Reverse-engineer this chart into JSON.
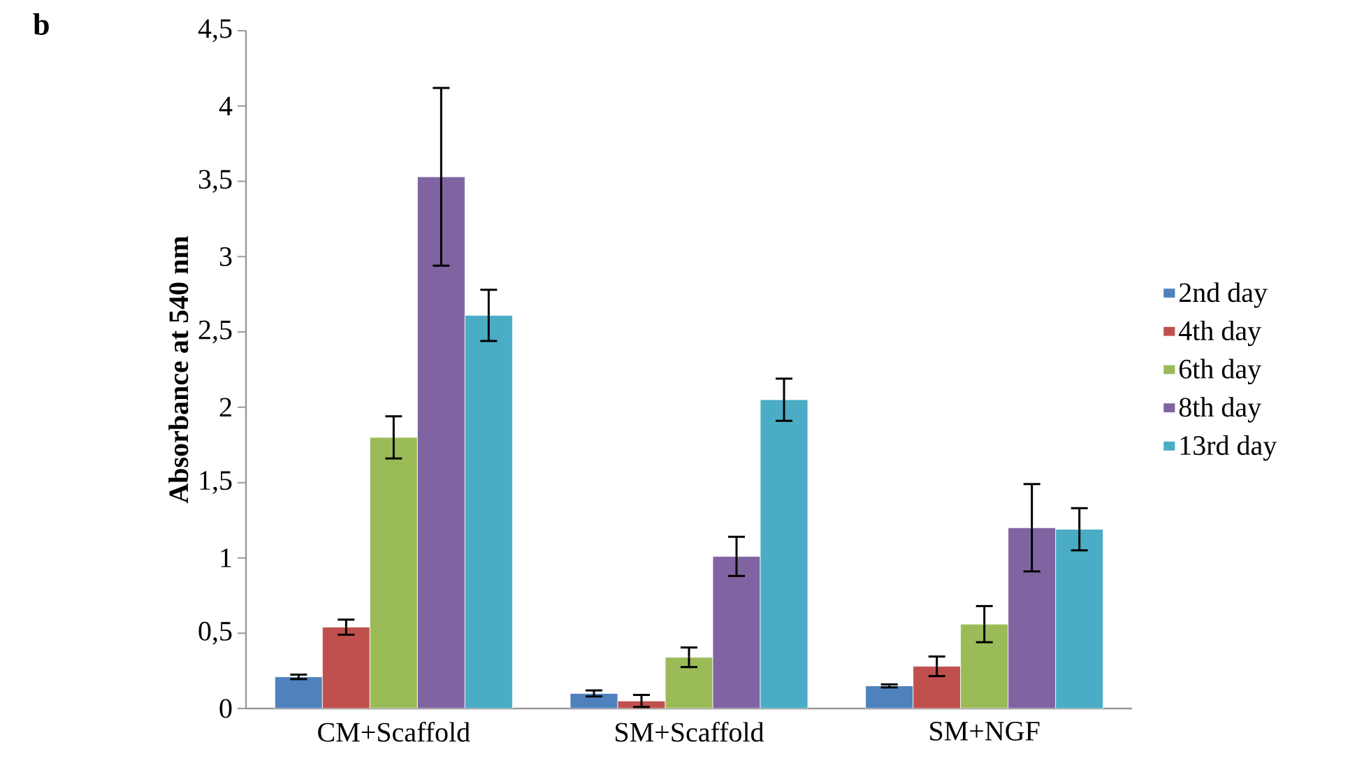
{
  "chart_data": {
    "type": "bar",
    "ylabel": "Absorbance at  540 nm",
    "annotations": [
      "**b**"
    ],
    "categories": [
      "CM+Scaffold",
      "SM+Scaffold",
      "SM+NGF"
    ],
    "series": [
      {
        "name": "2nd day",
        "color": "#4f81bd",
        "values": [
          0.21,
          0.1,
          0.15
        ],
        "errors": [
          0.015,
          0.02,
          0.01
        ]
      },
      {
        "name": "4th day",
        "color": "#c0504d",
        "values": [
          0.54,
          0.05,
          0.28
        ],
        "errors": [
          0.05,
          0.04,
          0.065
        ]
      },
      {
        "name": "6th day",
        "color": "#9bbb59",
        "values": [
          1.8,
          0.34,
          0.56
        ],
        "errors": [
          0.14,
          0.065,
          0.12
        ]
      },
      {
        "name": "8th day",
        "color": "#8064a2",
        "values": [
          3.53,
          1.01,
          1.2
        ],
        "errors": [
          0.59,
          0.13,
          0.29
        ]
      },
      {
        "name": "13rd day",
        "color": "#4bacc6",
        "values": [
          2.61,
          2.05,
          1.19
        ],
        "errors": [
          0.17,
          0.14,
          0.14
        ]
      }
    ],
    "ylim": [
      0,
      4.5
    ],
    "yticks": [
      0,
      {
        "value": 0.5,
        "label": "0,5"
      },
      1,
      {
        "value": 1.5,
        "label": "1,5"
      },
      2,
      {
        "value": 2.5,
        "label": "2,5"
      },
      3,
      {
        "value": 3.5,
        "label": "3,5"
      },
      4,
      {
        "value": 4.5,
        "label": "4,5"
      }
    ],
    "grid": false,
    "legend": "right"
  }
}
